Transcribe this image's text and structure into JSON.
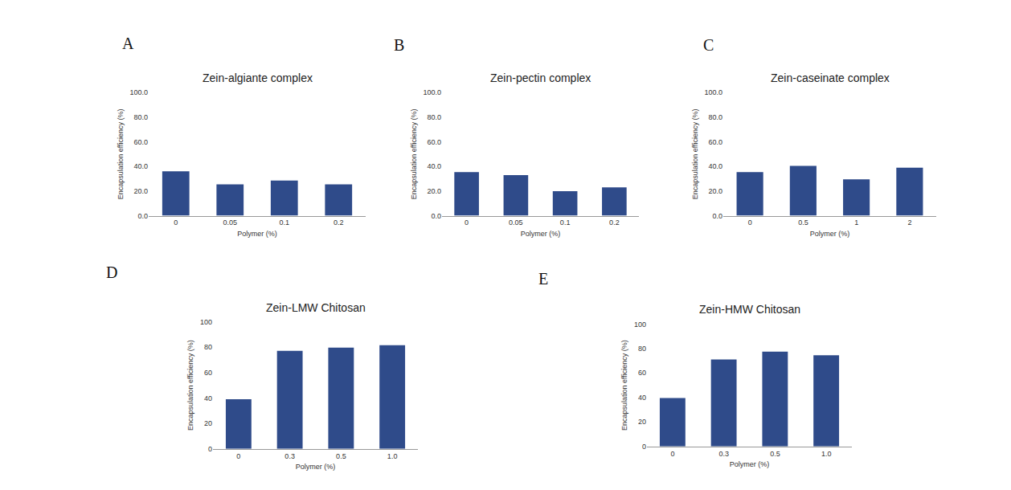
{
  "chart_data": [
    {
      "type": "bar",
      "title": "Zein-algiante complex",
      "annotations": [
        "A"
      ],
      "x_label": "Polymer (%)",
      "y_label": "Encapsulation efficiency (%)",
      "categories": [
        "0",
        "0.05",
        "0.1",
        "0.2"
      ],
      "values": [
        36,
        25.5,
        28.5,
        25.5
      ],
      "color": "#2f4b8a",
      "ylim": [
        0,
        100
      ],
      "yticks": [
        {
          "value": 0,
          "label": "0.0"
        },
        {
          "value": 20,
          "label": "20.0"
        },
        {
          "value": 40,
          "label": "40.0"
        },
        {
          "value": 60,
          "label": "60.0"
        },
        {
          "value": 80,
          "label": "80.0"
        },
        {
          "value": 100,
          "label": "100.0"
        }
      ],
      "grid": false
    },
    {
      "type": "bar",
      "title": "Zein-pectin complex",
      "annotations": [
        "B"
      ],
      "x_label": "Polymer (%)",
      "y_label": "Encapsulation efficiency (%)",
      "categories": [
        "0",
        "0.05",
        "0.1",
        "0.2"
      ],
      "values": [
        35.5,
        33,
        20,
        23
      ],
      "color": "#2f4b8a",
      "ylim": [
        0,
        100
      ],
      "yticks": [
        {
          "value": 0,
          "label": "0.0"
        },
        {
          "value": 20,
          "label": "20.0"
        },
        {
          "value": 40,
          "label": "40.0"
        },
        {
          "value": 60,
          "label": "60.0"
        },
        {
          "value": 80,
          "label": "80.0"
        },
        {
          "value": 100,
          "label": "100.0"
        }
      ],
      "grid": false
    },
    {
      "type": "bar",
      "title": "Zein-caseinate complex",
      "annotations": [
        "C"
      ],
      "x_label": "Polymer (%)",
      "y_label": "Encapsulation efficiency (%)",
      "categories": [
        "0",
        "0.5",
        "1",
        "2"
      ],
      "values": [
        35.5,
        40.5,
        29.5,
        39
      ],
      "color": "#2f4b8a",
      "ylim": [
        0,
        100
      ],
      "yticks": [
        {
          "value": 0,
          "label": "0.0"
        },
        {
          "value": 20,
          "label": "20.0"
        },
        {
          "value": 40,
          "label": "40.0"
        },
        {
          "value": 60,
          "label": "60.0"
        },
        {
          "value": 80,
          "label": "80.0"
        },
        {
          "value": 100,
          "label": "100.0"
        }
      ],
      "grid": false
    },
    {
      "type": "bar",
      "title": "Zein-LMW Chitosan",
      "annotations": [
        "D"
      ],
      "x_label": "Polymer (%)",
      "y_label": "Encapsulation efficiency (%)",
      "categories": [
        "0",
        "0.3",
        "0.5",
        "1.0"
      ],
      "values": [
        39,
        77,
        79.5,
        81.5
      ],
      "color": "#2f4b8a",
      "ylim": [
        0,
        100
      ],
      "yticks": [
        0,
        20,
        40,
        60,
        80,
        100
      ],
      "grid": false
    },
    {
      "type": "bar",
      "title": "Zein-HMW Chitosan",
      "annotations": [
        "E"
      ],
      "x_label": "Polymer (%)",
      "y_label": "Encapsulation efficiency (%)",
      "categories": [
        "0",
        "0.3",
        "0.5",
        "1.0"
      ],
      "values": [
        39.5,
        71,
        77.5,
        74.5
      ],
      "color": "#2f4b8a",
      "ylim": [
        0,
        100
      ],
      "yticks": [
        0,
        20,
        40,
        60,
        80,
        100
      ],
      "grid": false
    }
  ]
}
